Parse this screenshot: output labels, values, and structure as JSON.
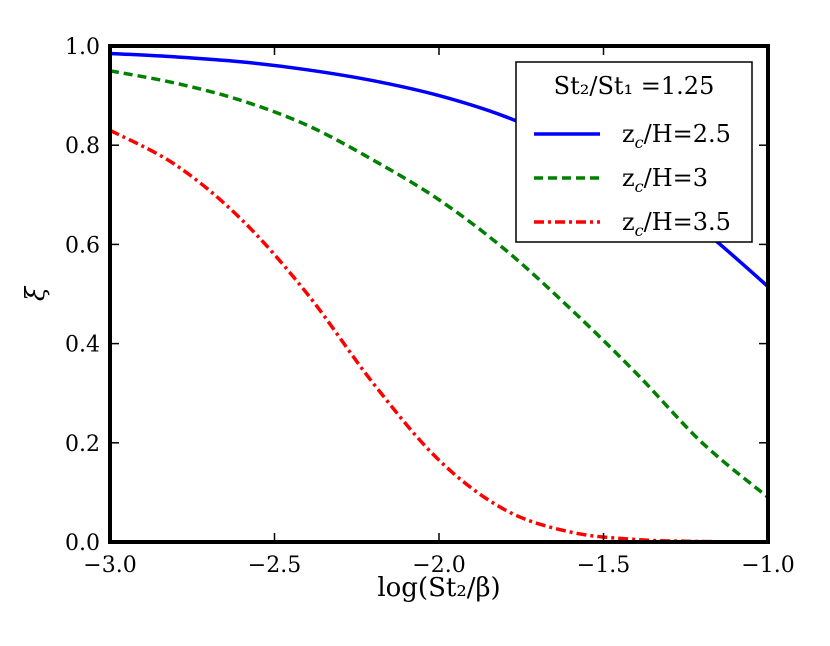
{
  "chart_data": {
    "type": "line",
    "xlabel": "log(St₂/β)",
    "ylabel": "ξ",
    "xlim": [
      -3.0,
      -1.0
    ],
    "ylim": [
      0.0,
      1.0
    ],
    "x_ticks": [
      -3.0,
      -2.5,
      -2.0,
      -1.5,
      -1.0
    ],
    "x_tick_labels": [
      "−3.0",
      "−2.5",
      "−2.0",
      "−1.5",
      "−1.0"
    ],
    "y_ticks": [
      0.0,
      0.2,
      0.4,
      0.6,
      0.8,
      1.0
    ],
    "y_tick_labels": [
      "0.0",
      "0.2",
      "0.4",
      "0.6",
      "0.8",
      "1.0"
    ],
    "grid": false,
    "legend": {
      "title": "St₂/St₁ =1.25",
      "placement": "top-right"
    },
    "x": [
      -3.0,
      -2.8,
      -2.6,
      -2.4,
      -2.2,
      -2.0,
      -1.8,
      -1.6,
      -1.4,
      -1.2,
      -1.0
    ],
    "series": [
      {
        "name": "z_c/H=2.5",
        "label_main": "z",
        "label_sub": "c",
        "label_rest": "/H=2.5",
        "color": "#0000ff",
        "style": "solid",
        "values": [
          0.985,
          0.978,
          0.968,
          0.952,
          0.93,
          0.9,
          0.858,
          0.8,
          0.725,
          0.63,
          0.515
        ]
      },
      {
        "name": "z_c/H=3",
        "label_main": "z",
        "label_sub": "c",
        "label_rest": "/H=3",
        "color": "#008000",
        "style": "dashed",
        "values": [
          0.95,
          0.925,
          0.89,
          0.84,
          0.77,
          0.69,
          0.59,
          0.47,
          0.34,
          0.2,
          0.09
        ]
      },
      {
        "name": "z_c/H=3.5",
        "label_main": "z",
        "label_sub": "c",
        "label_rest": "/H=3.5",
        "color": "#ff0000",
        "style": "dashdot",
        "values": [
          0.83,
          0.76,
          0.65,
          0.5,
          0.32,
          0.165,
          0.065,
          0.02,
          0.005,
          0.001,
          0.0
        ]
      }
    ]
  }
}
